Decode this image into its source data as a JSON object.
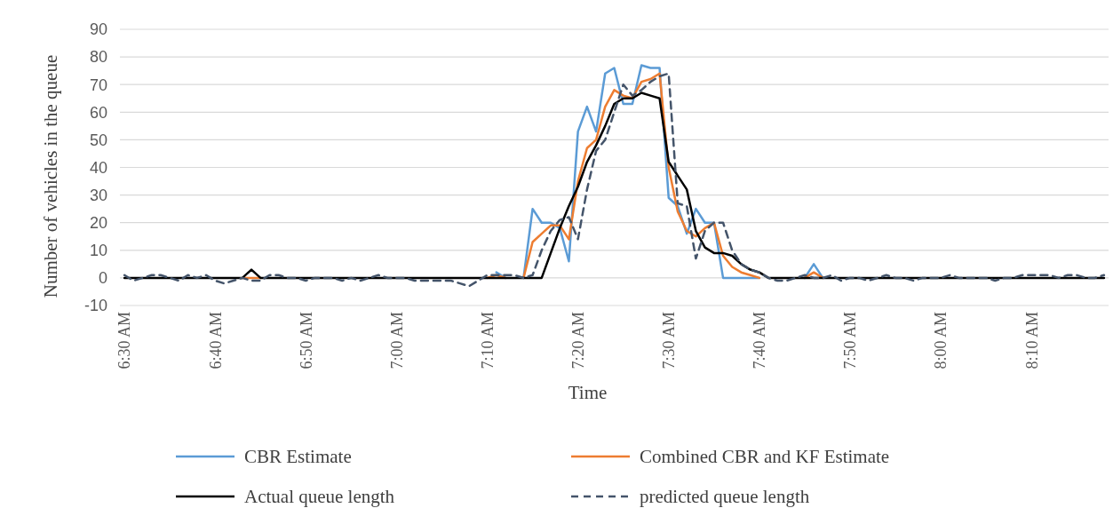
{
  "chart_data": {
    "type": "line",
    "xlabel": "Time",
    "ylabel": "Number of vehicles in the queue",
    "categories": [
      "6:30 AM",
      null,
      null,
      null,
      null,
      null,
      null,
      null,
      null,
      null,
      "6:40 AM",
      null,
      null,
      null,
      null,
      null,
      null,
      null,
      null,
      null,
      "6:50 AM",
      null,
      null,
      null,
      null,
      null,
      null,
      null,
      null,
      null,
      "7:00 AM",
      null,
      null,
      null,
      null,
      null,
      null,
      null,
      null,
      null,
      "7:10 AM",
      null,
      null,
      null,
      null,
      null,
      null,
      null,
      null,
      null,
      "7:20 AM",
      null,
      null,
      null,
      null,
      null,
      null,
      null,
      null,
      null,
      "7:30 AM",
      null,
      null,
      null,
      null,
      null,
      null,
      null,
      null,
      null,
      "7:40 AM",
      null,
      null,
      null,
      null,
      null,
      null,
      null,
      null,
      null,
      "7:50 AM",
      null,
      null,
      null,
      null,
      null,
      null,
      null,
      null,
      null,
      "8:00 AM",
      null,
      null,
      null,
      null,
      null,
      null,
      null,
      null,
      null,
      "8:10 AM",
      null,
      null,
      null,
      null,
      null,
      null,
      null,
      null
    ],
    "series": [
      {
        "name": "CBR Estimate",
        "color": "#5b9bd5",
        "values": [
          null,
          null,
          null,
          null,
          null,
          null,
          null,
          null,
          null,
          null,
          null,
          null,
          null,
          null,
          null,
          null,
          null,
          null,
          null,
          null,
          null,
          null,
          null,
          null,
          null,
          null,
          null,
          null,
          null,
          null,
          null,
          null,
          null,
          null,
          null,
          null,
          null,
          null,
          null,
          null,
          null,
          2,
          0,
          null,
          0,
          25,
          20,
          20,
          18,
          6,
          53,
          62,
          53,
          74,
          76,
          63,
          63,
          77,
          76,
          76,
          29,
          26,
          16,
          25,
          20,
          20,
          0,
          0,
          0,
          0,
          0,
          null,
          null,
          null,
          null,
          0,
          5,
          0,
          null,
          null,
          null,
          null,
          null,
          null,
          null,
          null,
          null,
          null,
          null,
          null,
          null,
          null,
          null,
          null,
          null,
          null,
          null,
          null,
          null,
          null,
          null,
          null,
          null,
          null,
          null,
          null,
          null,
          null,
          null
        ]
      },
      {
        "name": "Combined CBR and KF Estimate",
        "color": "#ed7d31",
        "values": [
          null,
          null,
          null,
          null,
          null,
          null,
          null,
          null,
          null,
          null,
          null,
          null,
          null,
          0,
          0,
          0,
          null,
          null,
          null,
          null,
          null,
          null,
          null,
          null,
          null,
          null,
          null,
          null,
          null,
          null,
          null,
          null,
          null,
          null,
          null,
          null,
          null,
          null,
          null,
          null,
          0,
          1,
          0,
          null,
          0,
          13,
          16,
          19,
          19,
          14,
          35,
          47,
          50,
          62,
          68,
          66,
          65,
          71,
          72,
          74,
          40,
          24,
          17,
          15,
          18,
          20,
          8,
          4,
          2,
          1,
          0,
          null,
          null,
          null,
          null,
          0,
          2,
          0,
          null,
          null,
          null,
          null,
          null,
          null,
          null,
          null,
          null,
          null,
          null,
          null,
          null,
          null,
          null,
          null,
          null,
          null,
          null,
          null,
          null,
          null,
          null,
          null,
          null,
          null,
          null,
          null,
          null,
          null,
          null
        ]
      },
      {
        "name": "Actual queue length",
        "color": "#000000",
        "values": [
          0,
          0,
          0,
          0,
          0,
          0,
          0,
          0,
          0,
          0,
          0,
          0,
          0,
          0,
          3,
          0,
          0,
          0,
          0,
          0,
          0,
          0,
          0,
          0,
          0,
          0,
          0,
          0,
          0,
          0,
          0,
          0,
          0,
          0,
          0,
          0,
          0,
          0,
          0,
          0,
          0,
          0,
          0,
          0,
          0,
          0,
          0,
          9,
          18,
          26,
          33,
          42,
          48,
          55,
          63,
          65,
          65,
          67,
          66,
          65,
          42,
          37,
          32,
          17,
          11,
          9,
          9,
          8,
          5,
          3,
          2,
          0,
          0,
          0,
          0,
          0,
          0,
          0,
          0,
          0,
          0,
          0,
          0,
          0,
          0,
          0,
          0,
          0,
          0,
          0,
          0,
          0,
          0,
          0,
          0,
          0,
          0,
          0,
          0,
          0,
          0,
          0,
          0,
          0,
          0,
          0,
          0,
          0,
          0
        ]
      },
      {
        "name": "predicted queue length",
        "color": "#44546a",
        "line_style": "dashed",
        "values": [
          1,
          -1,
          0,
          1,
          1,
          0,
          -1,
          1,
          0,
          1,
          -1,
          -2,
          -1,
          0,
          -1,
          -1,
          1,
          1,
          0,
          0,
          -1,
          0,
          0,
          0,
          -1,
          0,
          -1,
          0,
          1,
          0,
          0,
          0,
          -1,
          -1,
          -1,
          -1,
          -1,
          -2,
          -3,
          -1,
          1,
          1,
          1,
          1,
          0,
          1,
          10,
          17,
          21,
          22,
          14,
          32,
          46,
          50,
          60,
          70,
          66,
          68,
          71,
          73,
          74,
          27,
          26,
          7,
          17,
          20,
          20,
          10,
          5,
          3,
          2,
          0,
          -1,
          -1,
          0,
          1,
          0,
          0,
          1,
          -1,
          0,
          0,
          -1,
          0,
          1,
          0,
          0,
          -1,
          0,
          0,
          0,
          1,
          0,
          0,
          0,
          0,
          -1,
          0,
          0,
          1,
          1,
          1,
          1,
          0,
          1,
          1,
          0,
          0,
          1
        ]
      }
    ],
    "ylim": [
      -10,
      90
    ],
    "yticks": [
      -10,
      0,
      10,
      20,
      30,
      40,
      50,
      60,
      70,
      80,
      90
    ],
    "grid": "y",
    "legend": "bottom",
    "marker": "none",
    "line_style": "solid"
  }
}
